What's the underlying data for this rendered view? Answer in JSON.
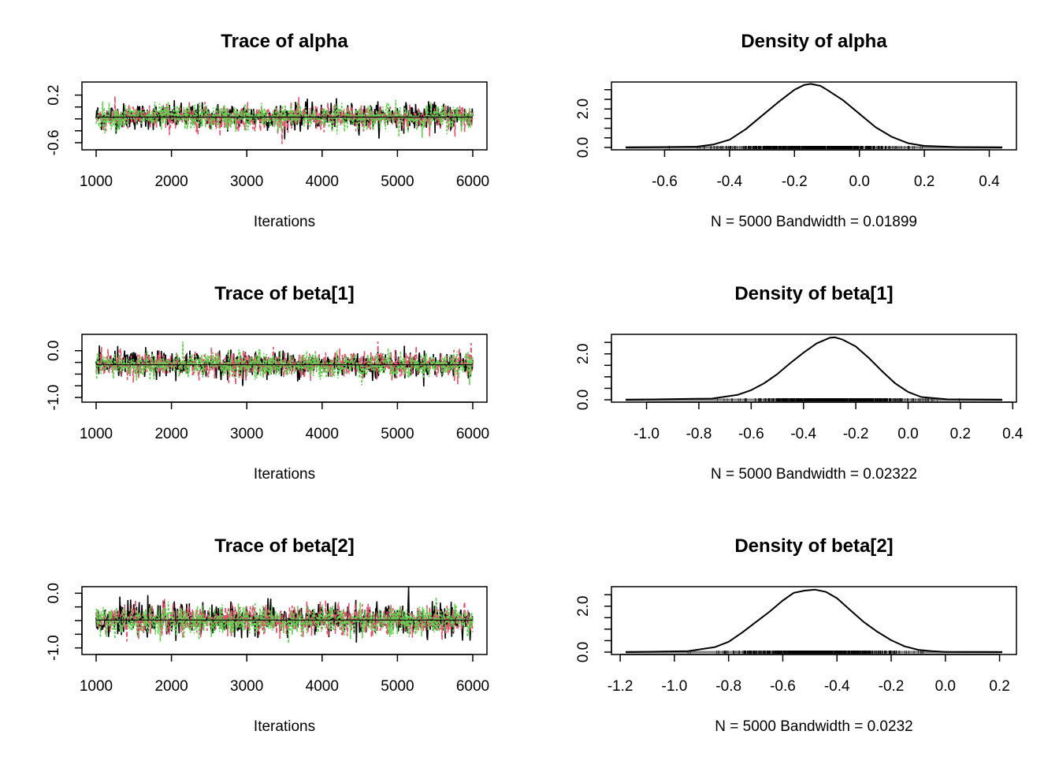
{
  "colors": {
    "chain1": "#000000",
    "chain2": "#DF536B",
    "chain3": "#61D04F",
    "density": "#000000",
    "rug": "#000000",
    "baseline": "#808080"
  },
  "chart_data": [
    {
      "type": "line",
      "title": "Trace of alpha",
      "xlabel": "Iterations",
      "xlim": [
        1000,
        6000
      ],
      "xticks": [
        "1000",
        "2000",
        "3000",
        "4000",
        "5000",
        "6000"
      ],
      "yticks": [
        "-0.6",
        "0.2"
      ],
      "ylim": [
        -0.72,
        0.42
      ],
      "chains": 3,
      "chain_center": [
        -0.16,
        -0.18,
        -0.17
      ],
      "chain_spread": 0.11,
      "n_iter": 5000,
      "grid": false,
      "legend": "none"
    },
    {
      "type": "area",
      "title": "Density of alpha",
      "xlabel": "N = 5000   Bandwidth = 0.01899",
      "xticks": [
        "-0.6",
        "-0.4",
        "-0.2",
        "0.0",
        "0.2",
        "0.4"
      ],
      "yticks": [
        "0.0",
        "2.0"
      ],
      "xlim": [
        -0.72,
        0.44
      ],
      "ylim": [
        0,
        3.4
      ],
      "curve": {
        "x": [
          -0.72,
          -0.5,
          -0.45,
          -0.4,
          -0.35,
          -0.3,
          -0.25,
          -0.2,
          -0.17,
          -0.15,
          -0.12,
          -0.1,
          -0.05,
          0.0,
          0.05,
          0.1,
          0.15,
          0.2,
          0.3,
          0.44
        ],
        "y": [
          0.0,
          0.04,
          0.15,
          0.4,
          0.95,
          1.65,
          2.35,
          3.0,
          3.25,
          3.3,
          3.2,
          3.0,
          2.45,
          1.75,
          1.05,
          0.55,
          0.22,
          0.08,
          0.02,
          0.0
        ]
      },
      "grid": false,
      "legend": "none"
    },
    {
      "type": "line",
      "title": "Trace of beta[1]",
      "xlabel": "Iterations",
      "xlim": [
        1000,
        6000
      ],
      "xticks": [
        "1000",
        "2000",
        "3000",
        "4000",
        "5000",
        "6000"
      ],
      "yticks": [
        "-1.0",
        "0.0"
      ],
      "ylim": [
        -1.1,
        0.35
      ],
      "chains": 3,
      "chain_center": [
        -0.29,
        -0.3,
        -0.31
      ],
      "chain_spread": 0.14,
      "n_iter": 5000,
      "grid": false,
      "legend": "none"
    },
    {
      "type": "area",
      "title": "Density of beta[1]",
      "xlabel": "N = 5000   Bandwidth = 0.02322",
      "xticks": [
        "-1.0",
        "-0.8",
        "-0.6",
        "-0.4",
        "-0.2",
        "0.0",
        "0.2",
        "0.4"
      ],
      "yticks": [
        "0.0",
        "2.0"
      ],
      "xlim": [
        -1.08,
        0.36
      ],
      "ylim": [
        0,
        2.85
      ],
      "curve": {
        "x": [
          -1.08,
          -0.75,
          -0.65,
          -0.6,
          -0.55,
          -0.5,
          -0.45,
          -0.4,
          -0.35,
          -0.3,
          -0.28,
          -0.25,
          -0.2,
          -0.15,
          -0.1,
          -0.05,
          0.0,
          0.05,
          0.15,
          0.36
        ],
        "y": [
          0.0,
          0.05,
          0.22,
          0.42,
          0.72,
          1.12,
          1.6,
          2.05,
          2.45,
          2.7,
          2.72,
          2.62,
          2.32,
          1.82,
          1.25,
          0.72,
          0.34,
          0.12,
          0.02,
          0.0
        ]
      },
      "grid": false,
      "legend": "none"
    },
    {
      "type": "line",
      "title": "Trace of beta[2]",
      "xlabel": "Iterations",
      "xlim": [
        1000,
        6000
      ],
      "xticks": [
        "1000",
        "2000",
        "3000",
        "4000",
        "5000",
        "6000"
      ],
      "yticks": [
        "-1.0",
        "0.0"
      ],
      "ylim": [
        -1.12,
        0.12
      ],
      "chains": 3,
      "chain_center": [
        -0.48,
        -0.49,
        -0.5
      ],
      "chain_spread": 0.14,
      "n_iter": 5000,
      "grid": false,
      "legend": "none"
    },
    {
      "type": "area",
      "title": "Density of beta[2]",
      "xlabel": "N = 5000   Bandwidth = 0.0232",
      "xticks": [
        "-1.2",
        "-1.0",
        "-0.8",
        "-0.6",
        "-0.4",
        "-0.2",
        "0.0",
        "0.2"
      ],
      "yticks": [
        "0.0",
        "2.0"
      ],
      "xlim": [
        -1.18,
        0.21
      ],
      "ylim": [
        0,
        2.85
      ],
      "curve": {
        "x": [
          -1.18,
          -0.95,
          -0.85,
          -0.8,
          -0.75,
          -0.7,
          -0.65,
          -0.6,
          -0.56,
          -0.52,
          -0.48,
          -0.44,
          -0.4,
          -0.35,
          -0.3,
          -0.25,
          -0.2,
          -0.15,
          -0.1,
          -0.05,
          0.0,
          0.21
        ],
        "y": [
          0.0,
          0.04,
          0.22,
          0.45,
          0.85,
          1.3,
          1.75,
          2.25,
          2.58,
          2.68,
          2.72,
          2.62,
          2.35,
          1.82,
          1.3,
          0.88,
          0.52,
          0.25,
          0.1,
          0.04,
          0.01,
          0.0
        ]
      },
      "grid": false,
      "legend": "none"
    }
  ]
}
